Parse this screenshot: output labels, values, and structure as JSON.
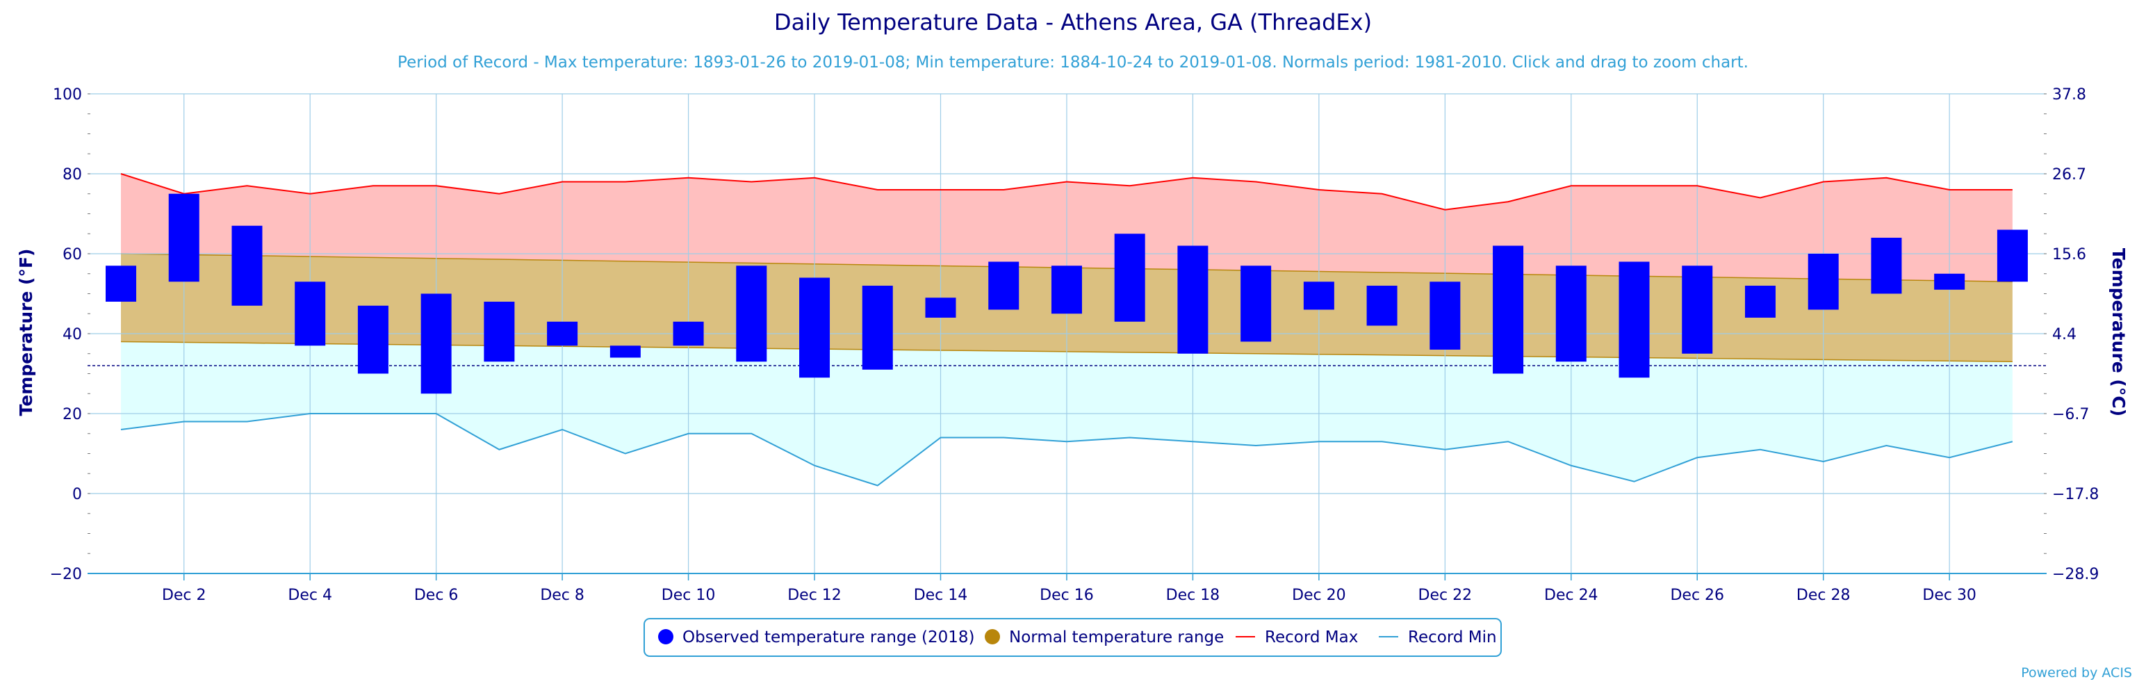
{
  "chart_data": {
    "type": "bar",
    "title": "Daily Temperature Data - Athens Area, GA (ThreadEx)",
    "subtitle": "Period of Record - Max temperature: 1893-01-26 to 2019-01-08; Min temperature: 1884-10-24 to 2019-01-08. Normals period: 1981-2010. Click and drag to zoom chart.",
    "ylabel": "Temperature (°F)",
    "y2label": "Temperature (°C)",
    "ylim": [
      -20,
      100
    ],
    "y_ticks": [
      "100",
      "80",
      "60",
      "40",
      "20",
      "0",
      "−20"
    ],
    "y2_ticks": [
      "37.8",
      "26.7",
      "15.6",
      "4.4",
      "−6.7",
      "−17.8",
      "−28.9"
    ],
    "x_tick_labels": [
      "Dec 2",
      "Dec 4",
      "Dec 6",
      "Dec 8",
      "Dec 10",
      "Dec 12",
      "Dec 14",
      "Dec 16",
      "Dec 18",
      "Dec 20",
      "Dec 22",
      "Dec 24",
      "Dec 26",
      "Dec 28",
      "Dec 30"
    ],
    "days": [
      1,
      2,
      3,
      4,
      5,
      6,
      7,
      8,
      9,
      10,
      11,
      12,
      13,
      14,
      15,
      16,
      17,
      18,
      19,
      20,
      21,
      22,
      23,
      24,
      25,
      26,
      27,
      28,
      29,
      30,
      31
    ],
    "freezing_line": 32,
    "series": [
      {
        "name": "Observed temperature range (2018)",
        "color": "#0000ff",
        "low": [
          48,
          53,
          47,
          37,
          30,
          25,
          33,
          37,
          34,
          37,
          33,
          29,
          31,
          44,
          46,
          45,
          43,
          35,
          38,
          46,
          42,
          36,
          30,
          33,
          29,
          35,
          44,
          46,
          50,
          51,
          53
        ],
        "high": [
          57,
          75,
          67,
          53,
          47,
          50,
          48,
          43,
          37,
          43,
          57,
          54,
          52,
          49,
          58,
          57,
          65,
          62,
          57,
          53,
          52,
          53,
          62,
          57,
          58,
          57,
          52,
          60,
          64,
          55,
          66
        ]
      },
      {
        "name": "Normal temperature range",
        "color": "#b8860b",
        "low_start": 38,
        "low_end": 33,
        "high_start": 60,
        "high_end": 53
      },
      {
        "name": "Record Max",
        "color": "#ff0000",
        "values": [
          80,
          75,
          77,
          75,
          77,
          77,
          75,
          78,
          78,
          79,
          78,
          79,
          76,
          76,
          76,
          78,
          77,
          79,
          78,
          76,
          75,
          71,
          73,
          77,
          77,
          77,
          74,
          78,
          79,
          76,
          76
        ]
      },
      {
        "name": "Record Min",
        "color": "#31a0d6",
        "values": [
          16,
          18,
          18,
          20,
          20,
          20,
          11,
          16,
          10,
          15,
          15,
          7,
          2,
          14,
          14,
          13,
          14,
          13,
          12,
          13,
          13,
          11,
          13,
          7,
          3,
          9,
          11,
          8,
          12,
          9,
          13
        ]
      }
    ],
    "legend_placement": "bottom-center",
    "grid": true
  },
  "credit": "Powered by ACIS"
}
